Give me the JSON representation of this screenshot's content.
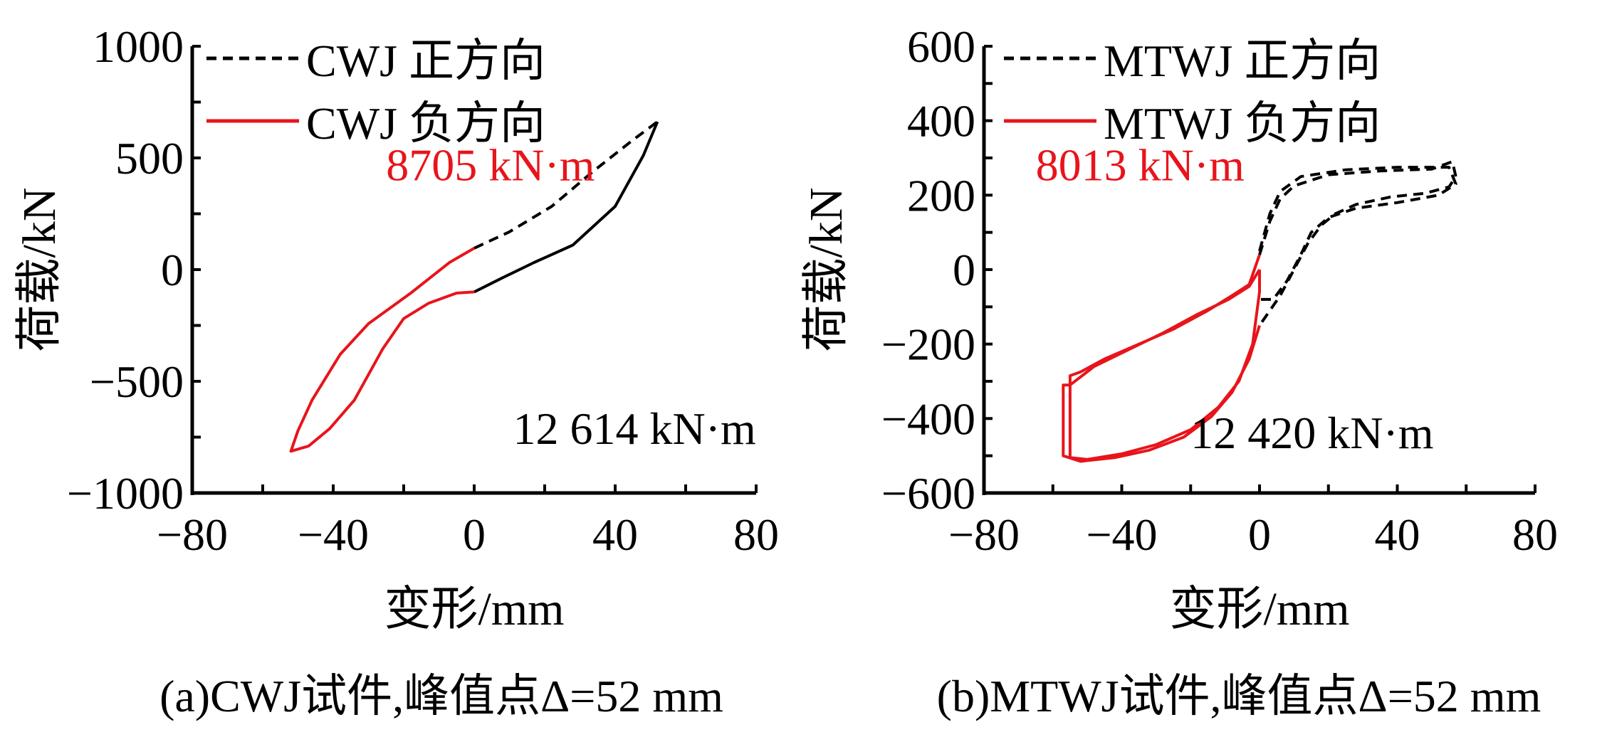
{
  "chart_data": [
    {
      "type": "line",
      "panel": "a",
      "caption": "(a)CWJ试件,峰值点Δ=52 mm",
      "xlabel": "变形/mm",
      "ylabel": "荷载/kN",
      "xlim": [
        -80,
        80
      ],
      "ylim": [
        -1000,
        1000
      ],
      "xticks": [
        "−80",
        "−40",
        "0",
        "40",
        "80"
      ],
      "xtick_values": [
        -80,
        -40,
        0,
        40,
        80
      ],
      "yticks": [
        "1000",
        "500",
        "0",
        "−500",
        "−1000"
      ],
      "ytick_values": [
        1000,
        500,
        0,
        -500,
        -1000
      ],
      "legend": [
        "CWJ 正方向",
        "CWJ 负方向"
      ],
      "legend_position": "top-left",
      "annotations": [
        {
          "text": "8705 kN·m",
          "color": "#e8141b",
          "x": -25,
          "y": 400
        },
        {
          "text": "12 614 kN·m",
          "color": "#000000",
          "x": 11,
          "y": -780
        }
      ],
      "series": [
        {
          "name": "CWJ 正方向",
          "color": "#000000",
          "style": "dashed",
          "points": [
            [
              0,
              96
            ],
            [
              10,
              169
            ],
            [
              22,
              283
            ],
            [
              34,
              443
            ],
            [
              45,
              580
            ],
            [
              52,
              662
            ]
          ]
        },
        {
          "name": "CWJ 正方向 return",
          "color": "#000000",
          "style": "solid",
          "points": [
            [
              52,
              662
            ],
            [
              48,
              511
            ],
            [
              40,
              283
            ],
            [
              28,
              110
            ],
            [
              17,
              32
            ],
            [
              8,
              -37
            ],
            [
              0,
              -100
            ]
          ]
        },
        {
          "name": "CWJ 负方向",
          "color": "#e8141b",
          "style": "solid",
          "points": [
            [
              0,
              96
            ],
            [
              -7,
              32
            ],
            [
              -18,
              -105
            ],
            [
              -30,
              -242
            ],
            [
              -38,
              -379
            ],
            [
              -46,
              -584
            ],
            [
              -50,
              -721
            ],
            [
              -52,
              -813
            ],
            [
              -47,
              -790
            ],
            [
              -41,
              -712
            ],
            [
              -34,
              -584
            ],
            [
              -26,
              -356
            ],
            [
              -20,
              -219
            ],
            [
              -13,
              -151
            ],
            [
              -5,
              -105
            ],
            [
              0,
              -100
            ]
          ]
        }
      ]
    },
    {
      "type": "line",
      "panel": "b",
      "caption": "(b)MTWJ试件,峰值点Δ=52 mm",
      "xlabel": "变形/mm",
      "ylabel": "荷载/kN",
      "xlim": [
        -80,
        80
      ],
      "ylim": [
        -600,
        600
      ],
      "xticks": [
        "−80",
        "−40",
        "0",
        "40",
        "80"
      ],
      "xtick_values": [
        -80,
        -40,
        0,
        40,
        80
      ],
      "yticks": [
        "600",
        "400",
        "200",
        "0",
        "−200",
        "−400",
        "−600"
      ],
      "ytick_values": [
        600,
        400,
        200,
        0,
        -200,
        -400,
        -600
      ],
      "legend": [
        "MTWJ 正方向",
        "MTWJ 负方向"
      ],
      "legend_position": "top-left",
      "annotations": [
        {
          "text": "8013 kN·m",
          "color": "#e8141b",
          "x": -65,
          "y": 240
        },
        {
          "text": "12 420 kN·m",
          "color": "#000000",
          "x": -20,
          "y": -480
        }
      ],
      "series": [
        {
          "name": "MTWJ 正方向",
          "color": "#000000",
          "style": "dashed",
          "points": [
            [
              0,
              40
            ],
            [
              3,
              130
            ],
            [
              6,
              190
            ],
            [
              10,
              225
            ],
            [
              20,
              255
            ],
            [
              35,
              265
            ],
            [
              50,
              270
            ],
            [
              56,
              290
            ],
            [
              57,
              250
            ],
            [
              55,
              222
            ],
            [
              48,
              205
            ],
            [
              38,
              195
            ],
            [
              28,
              175
            ],
            [
              22,
              150
            ],
            [
              18,
              120
            ],
            [
              14,
              70
            ],
            [
              10,
              0
            ],
            [
              6,
              -70
            ],
            [
              3,
              -110
            ],
            [
              0,
              -150
            ]
          ]
        },
        {
          "name": "MTWJ 正方向 inner",
          "color": "#000000",
          "style": "dashed",
          "points": [
            [
              0,
              50
            ],
            [
              3,
              150
            ],
            [
              6,
              210
            ],
            [
              12,
              250
            ],
            [
              25,
              268
            ],
            [
              40,
              275
            ],
            [
              55,
              275
            ],
            [
              57,
              230
            ],
            [
              52,
              200
            ],
            [
              40,
              180
            ],
            [
              28,
              165
            ],
            [
              20,
              140
            ],
            [
              15,
              100
            ],
            [
              12,
              40
            ],
            [
              8,
              -30
            ],
            [
              4,
              -80
            ],
            [
              0,
              -80
            ]
          ]
        },
        {
          "name": "MTWJ 负方向",
          "color": "#e8141b",
          "style": "solid",
          "points": [
            [
              0,
              40
            ],
            [
              -3,
              -40
            ],
            [
              -8,
              -70
            ],
            [
              -15,
              -110
            ],
            [
              -25,
              -160
            ],
            [
              -35,
              -200
            ],
            [
              -45,
              -240
            ],
            [
              -52,
              -275
            ],
            [
              -55,
              -285
            ],
            [
              -55,
              -505
            ],
            [
              -50,
              -510
            ],
            [
              -40,
              -495
            ],
            [
              -30,
              -470
            ],
            [
              -20,
              -430
            ],
            [
              -12,
              -370
            ],
            [
              -6,
              -300
            ],
            [
              -2,
              -200
            ],
            [
              0,
              -60
            ],
            [
              0,
              0
            ]
          ]
        },
        {
          "name": "MTWJ 负方向 inner",
          "color": "#e8141b",
          "style": "solid",
          "points": [
            [
              0,
              0
            ],
            [
              -3,
              -45
            ],
            [
              -9,
              -80
            ],
            [
              -18,
              -120
            ],
            [
              -28,
              -170
            ],
            [
              -38,
              -215
            ],
            [
              -48,
              -260
            ],
            [
              -55,
              -310
            ],
            [
              -57,
              -310
            ],
            [
              -57,
              -500
            ],
            [
              -52,
              -515
            ],
            [
              -42,
              -505
            ],
            [
              -32,
              -485
            ],
            [
              -22,
              -450
            ],
            [
              -14,
              -395
            ],
            [
              -8,
              -330
            ],
            [
              -3,
              -240
            ],
            [
              0,
              -150
            ]
          ]
        }
      ]
    }
  ]
}
